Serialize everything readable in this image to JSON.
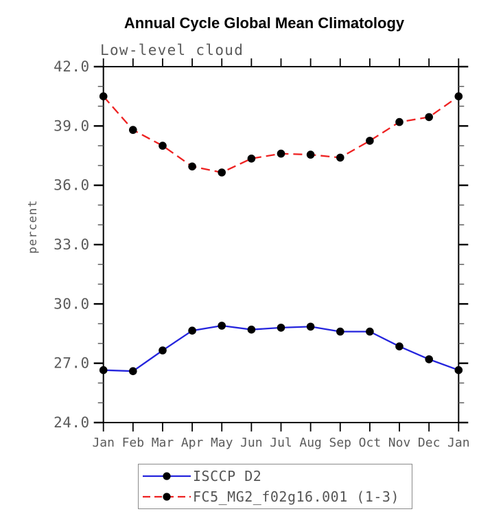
{
  "chart_data": {
    "type": "line",
    "title": "Annual Cycle Global Mean Climatology",
    "subtitle": "Low-level cloud",
    "ylabel": "percent",
    "xlabel": "",
    "ylim": [
      24.0,
      42.0
    ],
    "ytick_major_interval": 3.0,
    "ytick_minor_interval": 1.0,
    "ytick_labels_top_to_bottom": [
      "42.0",
      "39.0",
      "36.0",
      "33.0",
      "30.0",
      "27.0",
      "24.0"
    ],
    "categories": [
      "Jan",
      "Feb",
      "Mar",
      "Apr",
      "May",
      "Jun",
      "Jul",
      "Aug",
      "Sep",
      "Oct",
      "Nov",
      "Dec",
      "Jan"
    ],
    "grid": false,
    "legend_position": "bottom",
    "series": [
      {
        "name": "ISCCP D2",
        "color": "#2424dd",
        "style": "solid",
        "marker": "circle",
        "marker_color": "#000000",
        "values": [
          26.65,
          26.6,
          27.65,
          28.65,
          28.9,
          28.7,
          28.8,
          28.85,
          28.6,
          28.6,
          27.85,
          27.2,
          26.65
        ]
      },
      {
        "name": "FC5_MG2_f02g16.001 (1-3)",
        "color": "#ee2222",
        "style": "dashed",
        "marker": "circle",
        "marker_color": "#000000",
        "values": [
          40.5,
          38.8,
          38.0,
          36.95,
          36.65,
          37.35,
          37.6,
          37.55,
          37.4,
          38.25,
          39.2,
          39.45,
          40.5
        ]
      }
    ],
    "colors": {
      "axis": "#000000",
      "tick_minor": "#555555",
      "text": "#5a5a5a",
      "background": "#ffffff",
      "legend_border": "#8a8a8a"
    }
  }
}
